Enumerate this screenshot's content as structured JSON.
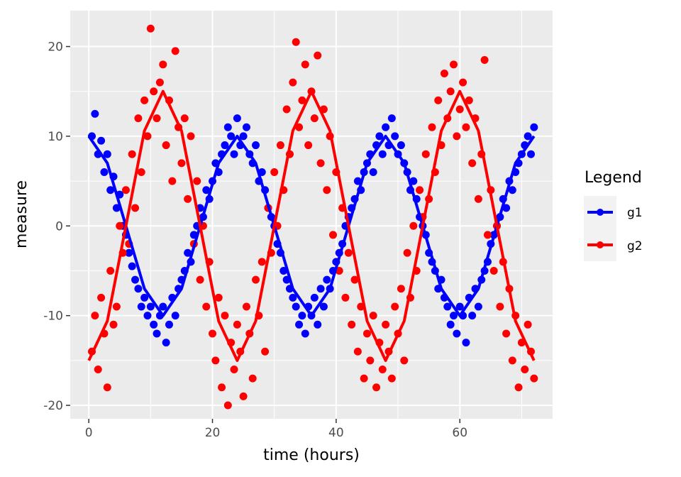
{
  "chart_data": {
    "type": "scatter",
    "xlabel": "time (hours)",
    "ylabel": "measure",
    "xlim": [
      -3,
      75
    ],
    "ylim": [
      -21.5,
      24
    ],
    "x_ticks": [
      0,
      20,
      40,
      60
    ],
    "x_tick_labels": [
      "0",
      "20",
      "40",
      "60"
    ],
    "y_ticks": [
      -20,
      -10,
      0,
      10,
      20
    ],
    "y_tick_labels": [
      "-20",
      "-10",
      "0",
      "10",
      "20"
    ],
    "grid": true,
    "legend_position": "right",
    "legend": {
      "title": "Legend",
      "entries": [
        {
          "label": "g1",
          "color": "#0000ff"
        },
        {
          "label": "g2",
          "color": "#ff0000"
        }
      ]
    },
    "series": [
      {
        "name": "g1",
        "color": "#0000ff",
        "marker": "points+line",
        "approx_trend": {
          "form": "10*cos(2*pi*t/24)",
          "amplitude": 10,
          "period_hours": 24,
          "noise_sd": 2
        },
        "line": {
          "x": [
            0,
            3,
            6,
            9,
            12,
            15,
            18,
            21,
            24,
            27,
            30,
            33,
            36,
            39,
            42,
            45,
            48,
            51,
            54,
            57,
            60,
            63,
            66,
            69,
            72
          ],
          "y": [
            10,
            7,
            0,
            -7,
            -10,
            -7,
            0,
            7,
            10,
            7,
            0,
            -7,
            -10,
            -7,
            0,
            7,
            10,
            7,
            0,
            -7,
            -10,
            -7,
            0,
            7,
            10
          ]
        },
        "points": [
          [
            0.5,
            10
          ],
          [
            1,
            12.5
          ],
          [
            1.5,
            8
          ],
          [
            2,
            9.5
          ],
          [
            2.5,
            6
          ],
          [
            3,
            8
          ],
          [
            3.5,
            4
          ],
          [
            4,
            5.5
          ],
          [
            4.5,
            2
          ],
          [
            5,
            3.5
          ],
          [
            5.5,
            0
          ],
          [
            6,
            -1
          ],
          [
            6.5,
            -3
          ],
          [
            7,
            -4.5
          ],
          [
            7.5,
            -6
          ],
          [
            8,
            -7
          ],
          [
            8.5,
            -9
          ],
          [
            9,
            -8
          ],
          [
            9.5,
            -10
          ],
          [
            10,
            -9
          ],
          [
            10.5,
            -11
          ],
          [
            11,
            -12
          ],
          [
            11.5,
            -10
          ],
          [
            12,
            -9
          ],
          [
            12.5,
            -13
          ],
          [
            13,
            -11
          ],
          [
            13.5,
            -8
          ],
          [
            14,
            -10
          ],
          [
            14.5,
            -7
          ],
          [
            15,
            -6
          ],
          [
            15.5,
            -5
          ],
          [
            16,
            -3
          ],
          [
            16.5,
            -4
          ],
          [
            17,
            -1
          ],
          [
            17.5,
            0
          ],
          [
            18,
            2
          ],
          [
            18.5,
            1
          ],
          [
            19,
            4
          ],
          [
            19.5,
            3
          ],
          [
            20,
            5
          ],
          [
            20.5,
            7
          ],
          [
            21,
            6
          ],
          [
            21.5,
            8
          ],
          [
            22,
            9
          ],
          [
            22.5,
            11
          ],
          [
            23,
            10
          ],
          [
            23.5,
            8
          ],
          [
            24,
            12
          ],
          [
            24.5,
            9
          ],
          [
            25,
            10
          ],
          [
            25.5,
            11
          ],
          [
            26,
            8
          ],
          [
            26.5,
            7
          ],
          [
            27,
            9
          ],
          [
            27.5,
            5
          ],
          [
            28,
            6
          ],
          [
            28.5,
            4
          ],
          [
            29,
            2
          ],
          [
            29.5,
            1
          ],
          [
            30,
            0
          ],
          [
            30.5,
            -2
          ],
          [
            31,
            -3
          ],
          [
            31.5,
            -5
          ],
          [
            32,
            -6
          ],
          [
            32.5,
            -7
          ],
          [
            33,
            -8
          ],
          [
            33.5,
            -9
          ],
          [
            34,
            -11
          ],
          [
            34.5,
            -10
          ],
          [
            35,
            -12
          ],
          [
            35.5,
            -9
          ],
          [
            36,
            -10
          ],
          [
            36.5,
            -8
          ],
          [
            37,
            -11
          ],
          [
            37.5,
            -7
          ],
          [
            38,
            -9
          ],
          [
            38.5,
            -6
          ],
          [
            39,
            -7
          ],
          [
            39.5,
            -5
          ],
          [
            40,
            -4
          ],
          [
            40.5,
            -3
          ],
          [
            41,
            -2
          ],
          [
            41.5,
            0
          ],
          [
            42,
            1
          ],
          [
            42.5,
            2
          ],
          [
            43,
            3
          ],
          [
            43.5,
            5
          ],
          [
            44,
            4
          ],
          [
            44.5,
            6
          ],
          [
            45,
            7
          ],
          [
            45.5,
            8
          ],
          [
            46,
            6
          ],
          [
            46.5,
            9
          ],
          [
            47,
            10
          ],
          [
            47.5,
            8
          ],
          [
            48,
            11
          ],
          [
            48.5,
            9
          ],
          [
            49,
            12
          ],
          [
            49.5,
            10
          ],
          [
            50,
            8
          ],
          [
            50.5,
            9
          ],
          [
            51,
            7
          ],
          [
            51.5,
            6
          ],
          [
            52,
            4
          ],
          [
            52.5,
            5
          ],
          [
            53,
            3
          ],
          [
            53.5,
            1
          ],
          [
            54,
            0
          ],
          [
            54.5,
            -1
          ],
          [
            55,
            -3
          ],
          [
            55.5,
            -4
          ],
          [
            56,
            -5
          ],
          [
            56.5,
            -7
          ],
          [
            57,
            -6
          ],
          [
            57.5,
            -8
          ],
          [
            58,
            -9
          ],
          [
            58.5,
            -11
          ],
          [
            59,
            -10
          ],
          [
            59.5,
            -12
          ],
          [
            60,
            -9
          ],
          [
            60.5,
            -10
          ],
          [
            61,
            -13
          ],
          [
            61.5,
            -8
          ],
          [
            62,
            -10
          ],
          [
            62.5,
            -7
          ],
          [
            63,
            -9
          ],
          [
            63.5,
            -6
          ],
          [
            64,
            -5
          ],
          [
            64.5,
            -4
          ],
          [
            65,
            -2
          ],
          [
            65.5,
            -1
          ],
          [
            66,
            0
          ],
          [
            66.5,
            1
          ],
          [
            67,
            3
          ],
          [
            67.5,
            2
          ],
          [
            68,
            5
          ],
          [
            68.5,
            4
          ],
          [
            69,
            6
          ],
          [
            69.5,
            7
          ],
          [
            70,
            8
          ],
          [
            70.5,
            9
          ],
          [
            71,
            10
          ],
          [
            71.5,
            8
          ],
          [
            72,
            11
          ]
        ]
      },
      {
        "name": "g2",
        "color": "#ff0000",
        "marker": "points+line",
        "approx_trend": {
          "form": "-15*cos(2*pi*t/24)",
          "amplitude": 15,
          "period_hours": 24,
          "noise_sd": 7
        },
        "line": {
          "x": [
            0,
            3,
            6,
            9,
            12,
            15,
            18,
            21,
            24,
            27,
            30,
            33,
            36,
            39,
            42,
            45,
            48,
            51,
            54,
            57,
            60,
            63,
            66,
            69,
            72
          ],
          "y": [
            -15,
            -10.6,
            0,
            10.6,
            15,
            10.6,
            0,
            -10.6,
            -15,
            -10.6,
            0,
            10.6,
            15,
            10.6,
            0,
            -10.6,
            -15,
            -10.6,
            0,
            10.6,
            15,
            10.6,
            0,
            -10.6,
            -15
          ]
        },
        "points": [
          [
            0.5,
            -14
          ],
          [
            1,
            -10
          ],
          [
            1.5,
            -16
          ],
          [
            2,
            -8
          ],
          [
            2.5,
            -12
          ],
          [
            3,
            -18
          ],
          [
            3.5,
            -5
          ],
          [
            4,
            -11
          ],
          [
            4.5,
            -9
          ],
          [
            5,
            0
          ],
          [
            5.5,
            -3
          ],
          [
            6,
            4
          ],
          [
            6.5,
            -2
          ],
          [
            7,
            8
          ],
          [
            7.5,
            2
          ],
          [
            8,
            12
          ],
          [
            8.5,
            6
          ],
          [
            9,
            14
          ],
          [
            9.5,
            10
          ],
          [
            10,
            22
          ],
          [
            10.5,
            15
          ],
          [
            11,
            12
          ],
          [
            11.5,
            16
          ],
          [
            12,
            18
          ],
          [
            12.5,
            9
          ],
          [
            13,
            14
          ],
          [
            13.5,
            5
          ],
          [
            14,
            19.5
          ],
          [
            14.5,
            11
          ],
          [
            15,
            7
          ],
          [
            15.5,
            12
          ],
          [
            16,
            3
          ],
          [
            16.5,
            10
          ],
          [
            17,
            -2
          ],
          [
            17.5,
            5
          ],
          [
            18,
            -6
          ],
          [
            18.5,
            0
          ],
          [
            19,
            -9
          ],
          [
            19.5,
            -4
          ],
          [
            20,
            -12
          ],
          [
            20.5,
            -15
          ],
          [
            21,
            -8
          ],
          [
            21.5,
            -18
          ],
          [
            22,
            -10
          ],
          [
            22.5,
            -20
          ],
          [
            23,
            -13
          ],
          [
            23.5,
            -16
          ],
          [
            24,
            -11
          ],
          [
            24.5,
            -14
          ],
          [
            25,
            -19
          ],
          [
            25.5,
            -9
          ],
          [
            26,
            -12
          ],
          [
            26.5,
            -17
          ],
          [
            27,
            -6
          ],
          [
            27.5,
            -10
          ],
          [
            28,
            -4
          ],
          [
            28.5,
            -14
          ],
          [
            29,
            2
          ],
          [
            29.5,
            -3
          ],
          [
            30,
            6
          ],
          [
            30.5,
            0
          ],
          [
            31,
            9
          ],
          [
            31.5,
            4
          ],
          [
            32,
            13
          ],
          [
            32.5,
            8
          ],
          [
            33,
            16
          ],
          [
            33.5,
            20.5
          ],
          [
            34,
            11
          ],
          [
            34.5,
            14
          ],
          [
            35,
            18
          ],
          [
            35.5,
            9
          ],
          [
            36,
            15
          ],
          [
            36.5,
            12
          ],
          [
            37,
            19
          ],
          [
            37.5,
            7
          ],
          [
            38,
            13
          ],
          [
            38.5,
            4
          ],
          [
            39,
            10
          ],
          [
            39.5,
            -1
          ],
          [
            40,
            6
          ],
          [
            40.5,
            -5
          ],
          [
            41,
            2
          ],
          [
            41.5,
            -8
          ],
          [
            42,
            -3
          ],
          [
            42.5,
            -11
          ],
          [
            43,
            -6
          ],
          [
            43.5,
            -14
          ],
          [
            44,
            -9
          ],
          [
            44.5,
            -17
          ],
          [
            45,
            -12
          ],
          [
            45.5,
            -15
          ],
          [
            46,
            -10
          ],
          [
            46.5,
            -18
          ],
          [
            47,
            -13
          ],
          [
            47.5,
            -16
          ],
          [
            48,
            -11
          ],
          [
            48.5,
            -14
          ],
          [
            49,
            -17
          ],
          [
            49.5,
            -9
          ],
          [
            50,
            -12
          ],
          [
            50.5,
            -7
          ],
          [
            51,
            -15
          ],
          [
            51.5,
            -3
          ],
          [
            52,
            -8
          ],
          [
            52.5,
            0
          ],
          [
            53,
            -5
          ],
          [
            53.5,
            4
          ],
          [
            54,
            1
          ],
          [
            54.5,
            8
          ],
          [
            55,
            3
          ],
          [
            55.5,
            11
          ],
          [
            56,
            6
          ],
          [
            56.5,
            14
          ],
          [
            57,
            9
          ],
          [
            57.5,
            17
          ],
          [
            58,
            12
          ],
          [
            58.5,
            15
          ],
          [
            59,
            18
          ],
          [
            59.5,
            10
          ],
          [
            60,
            13
          ],
          [
            60.5,
            16
          ],
          [
            61,
            11
          ],
          [
            61.5,
            14
          ],
          [
            62,
            7
          ],
          [
            62.5,
            12
          ],
          [
            63,
            3
          ],
          [
            63.5,
            8
          ],
          [
            64,
            18.5
          ],
          [
            64.5,
            -1
          ],
          [
            65,
            4
          ],
          [
            65.5,
            -5
          ],
          [
            66,
            0
          ],
          [
            66.5,
            -9
          ],
          [
            67,
            -4
          ],
          [
            67.5,
            -12
          ],
          [
            68,
            -7
          ],
          [
            68.5,
            -15
          ],
          [
            69,
            -10
          ],
          [
            69.5,
            -18
          ],
          [
            70,
            -13
          ],
          [
            70.5,
            -16
          ],
          [
            71,
            -11
          ],
          [
            71.5,
            -14
          ],
          [
            72,
            -17
          ]
        ]
      }
    ]
  }
}
